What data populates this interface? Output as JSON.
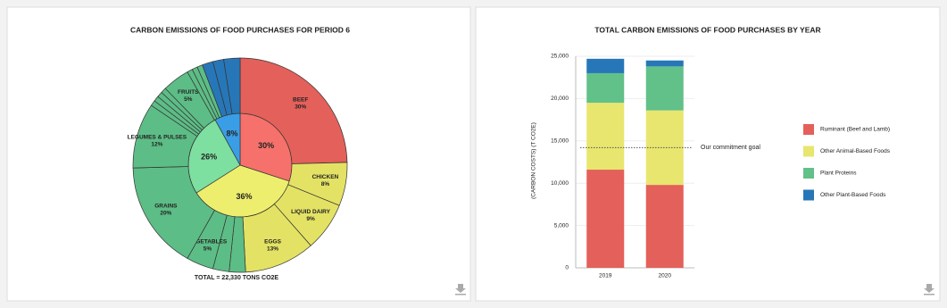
{
  "chart_data": [
    {
      "type": "pie",
      "title": "CARBON EMISSIONS OF FOOD PURCHASES FOR PERIOD 6",
      "annotation": "TOTAL = 22,330 TONS CO2E",
      "rings": [
        {
          "values": [
            30,
            36,
            26,
            8
          ],
          "value_labels": [
            "30%",
            "36%",
            "26%",
            "8%"
          ],
          "colors": [
            "#f6716b",
            "#eeee6e",
            "#7ddfa0",
            "#3a9ee6"
          ]
        },
        {
          "categories": [
            "BEEF",
            "CHICKEN",
            "LIQUID DAIRY",
            "EGGS",
            null,
            null,
            "VEGETABLES",
            "GRAINS",
            "LEGUMES & PULSES",
            null,
            null,
            null,
            null,
            "FRUITS",
            null,
            null,
            null,
            null,
            null,
            null
          ],
          "values": [
            30,
            8,
            9,
            13,
            3,
            3,
            5,
            20,
            12,
            1,
            1,
            1,
            1,
            5,
            1,
            1,
            1,
            2,
            2,
            3
          ],
          "value_labels": [
            "30%",
            "8%",
            "9%",
            "13%",
            null,
            null,
            "5%",
            "20%",
            "12%",
            null,
            null,
            null,
            null,
            "5%",
            null,
            null,
            null,
            null,
            null,
            null
          ],
          "colors": [
            "#e4605a",
            "#e4e264",
            "#e4e264",
            "#e4e264",
            "#5dbd86",
            "#5dbd86",
            "#5dbd86",
            "#5dbd86",
            "#5dbd86",
            "#5dbd86",
            "#5dbd86",
            "#5dbd86",
            "#5dbd86",
            "#5dbd86",
            "#5dbd86",
            "#5dbd86",
            "#5dbd86",
            "#2777b8",
            "#2777b8",
            "#2777b8"
          ]
        }
      ]
    },
    {
      "type": "bar",
      "title": "TOTAL CARBON EMISSIONS OF FOOD PURCHASES BY YEAR",
      "y_label": "(CARBON COSTS) (T CO2E)",
      "categories": [
        "2019",
        "2020"
      ],
      "series": [
        {
          "name": "Ruminant (Beef and Lamb)",
          "color": "#e4605a",
          "values": [
            11600,
            9800
          ]
        },
        {
          "name": "Other Animal-Based Foods",
          "color": "#e8e66e",
          "values": [
            7900,
            8800
          ]
        },
        {
          "name": "Plant Proteins",
          "color": "#62c089",
          "values": [
            3500,
            5200
          ]
        },
        {
          "name": "Other Plant-Based Foods",
          "color": "#2777b8",
          "values": [
            1700,
            700
          ]
        }
      ],
      "ylim": [
        0,
        25000
      ],
      "yticks": [
        0,
        {
          "value": 5000,
          "label": "5,000"
        },
        {
          "value": 10000,
          "label": "10,000"
        },
        {
          "value": 15000,
          "label": "15,000"
        },
        {
          "value": 20000,
          "label": "20,000"
        },
        {
          "value": 25000,
          "label": "25,000"
        }
      ],
      "grid": true,
      "reference_line": {
        "value": 14200,
        "label": "Our commitment goal"
      },
      "legend": "right"
    }
  ]
}
